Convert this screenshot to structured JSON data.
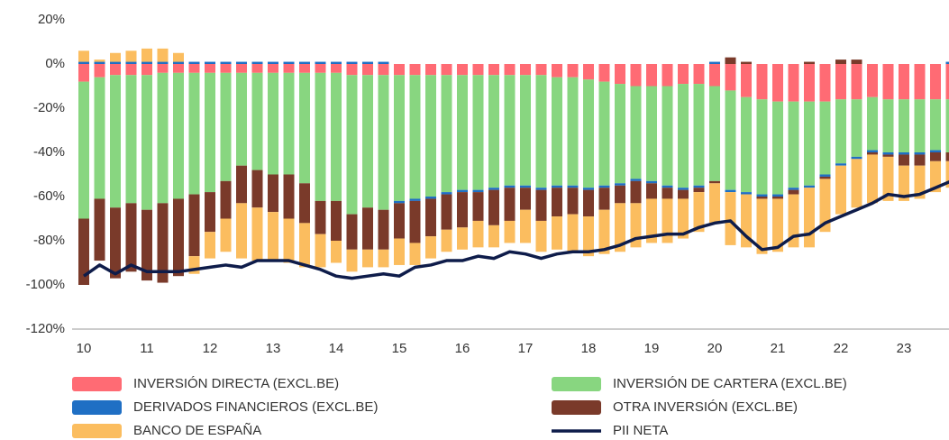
{
  "chart_data": {
    "type": "stacked-bar-line",
    "categories": [
      "10",
      null,
      null,
      null,
      "11",
      null,
      null,
      null,
      "12",
      null,
      null,
      null,
      "13",
      null,
      null,
      null,
      "14",
      null,
      null,
      null,
      "15",
      null,
      null,
      null,
      "16",
      null,
      null,
      null,
      "17",
      null,
      null,
      null,
      "18",
      null,
      null,
      null,
      "19",
      null,
      null,
      null,
      "20",
      null,
      null,
      null,
      "21",
      null,
      null,
      null,
      "22",
      null,
      null,
      null,
      "23",
      null,
      null,
      null
    ],
    "ylim": [
      -120,
      20
    ],
    "yticks": [
      {
        "value": 20,
        "label": "20%"
      },
      {
        "value": 0,
        "label": "0%"
      },
      {
        "value": -20,
        "label": "-20%"
      },
      {
        "value": -40,
        "label": "-40%"
      },
      {
        "value": -60,
        "label": "-60%"
      },
      {
        "value": -80,
        "label": "-80%"
      },
      {
        "value": -100,
        "label": "-100%"
      },
      {
        "value": -120,
        "label": "-120%"
      }
    ],
    "grid": false,
    "series": [
      {
        "name": "INVERSIÓN DIRECTA (EXCL.BE)",
        "type": "bar",
        "color": "#ff6b74",
        "values": [
          -8,
          -6,
          -5,
          -5,
          -5,
          -4,
          -4,
          -4,
          -4,
          -4,
          -4,
          -4,
          -4,
          -4,
          -4,
          -4,
          -4,
          -5,
          -5,
          -5,
          -5,
          -5,
          -5,
          -5,
          -5,
          -5,
          -5,
          -5,
          -5,
          -5,
          -6,
          -6,
          -7,
          -8,
          -9,
          -10,
          -10,
          -10,
          -9,
          -9,
          -10,
          -12,
          -15,
          -16,
          -17,
          -17,
          -17,
          -17,
          -16,
          -16,
          -15,
          -16,
          -16,
          -16,
          -16,
          -16
        ]
      },
      {
        "name": "INVERSIÓN DE CARTERA (EXCL.BE)",
        "type": "bar",
        "color": "#88d680",
        "values": [
          -62,
          -55,
          -60,
          -58,
          -61,
          -59,
          -57,
          -55,
          -54,
          -49,
          -42,
          -44,
          -46,
          -46,
          -50,
          -58,
          -58,
          -63,
          -60,
          -61,
          -57,
          -56,
          -55,
          -53,
          -52,
          -52,
          -51,
          -50,
          -50,
          -51,
          -49,
          -49,
          -49,
          -47,
          -45,
          -42,
          -43,
          -45,
          -47,
          -46,
          -43,
          -45,
          -43,
          -43,
          -42,
          -39,
          -38,
          -33,
          -29,
          -26,
          -24,
          -24,
          -24,
          -24,
          -23,
          -24
        ]
      },
      {
        "name": "DERIVADOS FINANCIEROS (EXCL.BE)",
        "type": "bar",
        "color": "#1f6fc4",
        "values": [
          1,
          1,
          1,
          1,
          1,
          1,
          1,
          1,
          1,
          1,
          1,
          1,
          1,
          1,
          1,
          1,
          1,
          1,
          1,
          1,
          -1,
          -1,
          -1,
          -1,
          -1,
          -1,
          -1,
          -1,
          -1,
          -1,
          -1,
          -1,
          -1,
          -1,
          -1,
          -1,
          -1,
          -1,
          -1,
          -1,
          1,
          -1,
          -1,
          -1,
          -1,
          -1,
          -1,
          -1,
          -1,
          -1,
          -1,
          -1,
          -1,
          -1,
          -1,
          1
        ]
      },
      {
        "name": "OTRA INVERSIÓN (EXCL.BE)",
        "type": "bar",
        "color": "#7a3a2a",
        "values": [
          -30,
          -28,
          -32,
          -31,
          -32,
          -36,
          -35,
          -28,
          -18,
          -17,
          -17,
          -17,
          -17,
          -20,
          -18,
          -15,
          -18,
          -16,
          -19,
          -18,
          -16,
          -19,
          -17,
          -16,
          -16,
          -13,
          -16,
          -15,
          -10,
          -14,
          -13,
          -12,
          -12,
          -10,
          -8,
          -10,
          -7,
          -5,
          -4,
          -2,
          -1,
          3,
          1,
          -1,
          -1,
          -2,
          1,
          -1,
          2,
          2,
          -1,
          -1,
          -5,
          -5,
          -4,
          -4
        ]
      },
      {
        "name": "BANCO DE ESPAÑA",
        "type": "bar",
        "color": "#fbbd5f",
        "values": [
          5,
          1,
          4,
          5,
          6,
          6,
          4,
          -8,
          -12,
          -15,
          -25,
          -24,
          -22,
          -20,
          -20,
          -15,
          -10,
          -10,
          -8,
          -8,
          -12,
          -10,
          -10,
          -10,
          -10,
          -12,
          -10,
          -10,
          -15,
          -14,
          -15,
          -17,
          -18,
          -20,
          -22,
          -20,
          -20,
          -20,
          -18,
          -18,
          -18,
          -24,
          -24,
          -25,
          -24,
          -24,
          -27,
          -24,
          -22,
          -22,
          -22,
          -20,
          -16,
          -15,
          -14,
          -12
        ]
      },
      {
        "name": "PII NETA",
        "type": "line",
        "color": "#0e1c4a",
        "values": [
          -96,
          -91,
          -95,
          -91,
          -94,
          -94,
          -94,
          -93,
          -92,
          -91,
          -92,
          -89,
          -89,
          -89,
          -91,
          -93,
          -96,
          -97,
          -96,
          -95,
          -96,
          -92,
          -91,
          -89,
          -89,
          -87,
          -88,
          -85,
          -86,
          -88,
          -86,
          -85,
          -85,
          -84,
          -82,
          -79,
          -78,
          -77,
          -77,
          -74,
          -72,
          -71,
          -78,
          -84,
          -83,
          -78,
          -77,
          -72,
          -69,
          -66,
          -63,
          -59,
          -60,
          -59,
          -56,
          -53
        ]
      }
    ],
    "legend": "bottom"
  }
}
